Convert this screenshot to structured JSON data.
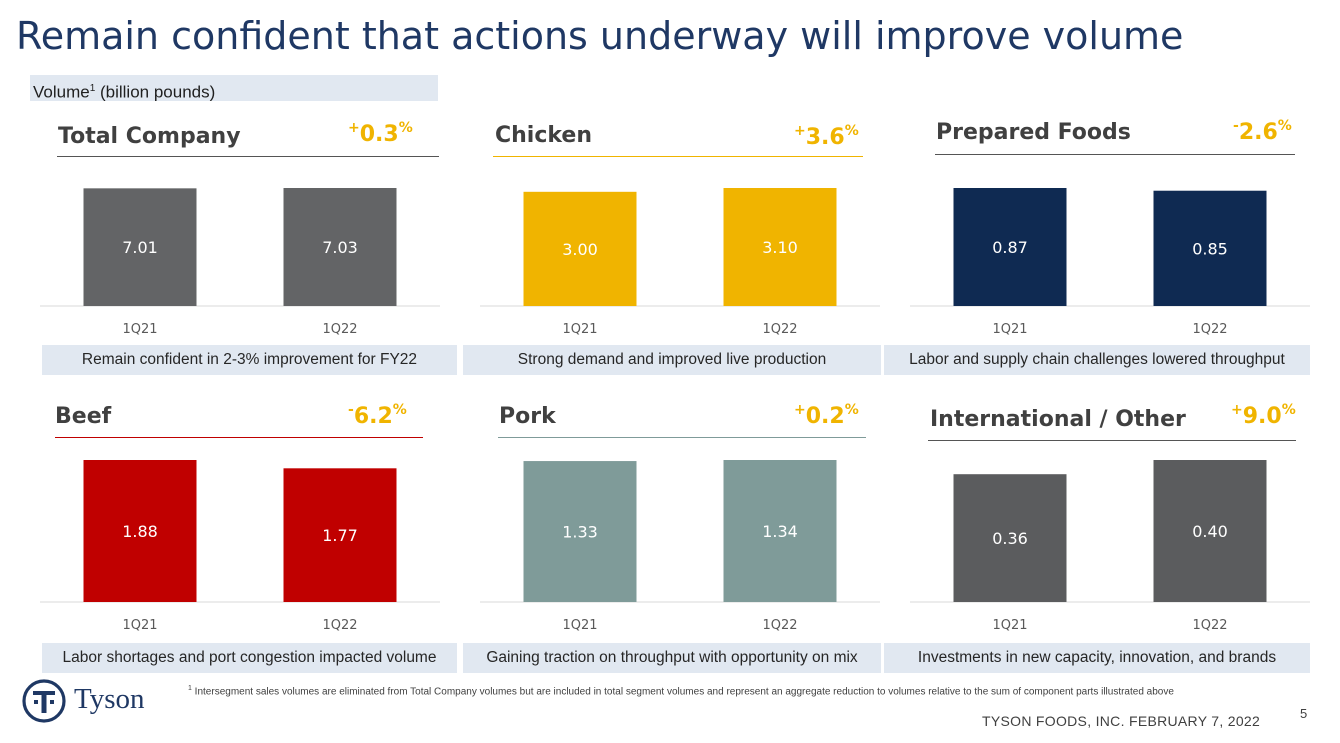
{
  "slide": {
    "title": "Remain confident that actions underway will improve volume",
    "subtitle_main": "Volume",
    "subtitle_sup": "1",
    "subtitle_rest": " (billion pounds)",
    "footnote_sup": "1",
    "footnote_text": " Intersegment sales volumes are eliminated from Total Company volumes but are included in total segment volumes and represent an aggregate reduction to volumes relative to the sum of component parts illustrated above",
    "company_date": "TYSON FOODS, INC. FEBRUARY 7, 2022",
    "page_number": "5",
    "logo_text": "Tyson"
  },
  "chart_data": [
    {
      "type": "bar",
      "title": "Total Company",
      "change_sign": "+",
      "change_value": "0.3",
      "change_unit": "%",
      "categories": [
        "1Q21",
        "1Q22"
      ],
      "values": [
        7.01,
        7.03
      ],
      "labels": [
        "7.01",
        "7.03"
      ],
      "color": "#636466",
      "caption": "Remain confident in 2-3% improvement for FY22"
    },
    {
      "type": "bar",
      "title": "Chicken",
      "change_sign": "+",
      "change_value": "3.6",
      "change_unit": "%",
      "categories": [
        "1Q21",
        "1Q22"
      ],
      "values": [
        3.0,
        3.1
      ],
      "labels": [
        "3.00",
        "3.10"
      ],
      "color": "#f0b400",
      "caption": "Strong demand and improved live production"
    },
    {
      "type": "bar",
      "title": "Prepared Foods",
      "change_sign": "-",
      "change_value": "2.6",
      "change_unit": "%",
      "categories": [
        "1Q21",
        "1Q22"
      ],
      "values": [
        0.87,
        0.85
      ],
      "labels": [
        "0.87",
        "0.85"
      ],
      "color": "#0f2a52",
      "caption": "Labor and supply chain challenges lowered throughput"
    },
    {
      "type": "bar",
      "title": "Beef",
      "change_sign": "-",
      "change_value": "6.2",
      "change_unit": "%",
      "categories": [
        "1Q21",
        "1Q22"
      ],
      "values": [
        1.88,
        1.77
      ],
      "labels": [
        "1.88",
        "1.77"
      ],
      "color": "#c00000",
      "caption": "Labor shortages and port congestion impacted volume"
    },
    {
      "type": "bar",
      "title": "Pork",
      "change_sign": "+",
      "change_value": "0.2",
      "change_unit": "%",
      "categories": [
        "1Q21",
        "1Q22"
      ],
      "values": [
        1.33,
        1.34
      ],
      "labels": [
        "1.33",
        "1.34"
      ],
      "color": "#7f9b99",
      "caption": "Gaining traction on throughput with opportunity on mix"
    },
    {
      "type": "bar",
      "title": "International / Other",
      "change_sign": "+",
      "change_value": "9.0",
      "change_unit": "%",
      "categories": [
        "1Q21",
        "1Q22"
      ],
      "values": [
        0.36,
        0.4
      ],
      "labels": [
        "0.36",
        "0.40"
      ],
      "color": "#5b5c5e",
      "caption": "Investments in new capacity, innovation, and brands"
    }
  ]
}
